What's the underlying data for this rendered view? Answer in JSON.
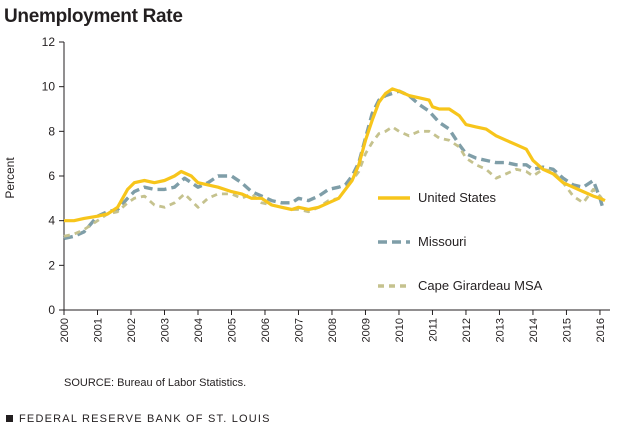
{
  "title": "Unemployment Rate",
  "source": "SOURCE: Bureau of Labor Statistics.",
  "footer": "FEDERAL RESERVE BANK OF ST. LOUIS",
  "chart_data": {
    "type": "line",
    "title": "Unemployment Rate",
    "xlabel": "",
    "ylabel": "Percent",
    "xlim": [
      2000,
      2016.3
    ],
    "ylim": [
      0,
      12
    ],
    "yticks": [
      0,
      2,
      4,
      6,
      8,
      10,
      12
    ],
    "xticks": [
      "2000",
      "2001",
      "2002",
      "2003",
      "2004",
      "2005",
      "2006",
      "2007",
      "2008",
      "2009",
      "2010",
      "2011",
      "2012",
      "2013",
      "2014",
      "2015",
      "2016"
    ],
    "grid": false,
    "legend": "inside-right",
    "series": [
      {
        "name": "United States",
        "color": "#f7c51b",
        "style": "solid",
        "x": [
          2000,
          2000.3,
          2000.6,
          2001.0,
          2001.3,
          2001.6,
          2001.9,
          2002.1,
          2002.4,
          2002.7,
          2003.0,
          2003.3,
          2003.5,
          2003.8,
          2004.0,
          2004.3,
          2004.6,
          2005.0,
          2005.3,
          2005.6,
          2005.9,
          2006.2,
          2006.5,
          2006.8,
          2007.0,
          2007.3,
          2007.6,
          2007.9,
          2008.2,
          2008.4,
          2008.6,
          2008.8,
          2009.0,
          2009.2,
          2009.4,
          2009.6,
          2009.8,
          2010.0,
          2010.3,
          2010.6,
          2010.9,
          2011.0,
          2011.2,
          2011.5,
          2011.8,
          2012.0,
          2012.3,
          2012.6,
          2012.9,
          2013.2,
          2013.5,
          2013.8,
          2014.0,
          2014.3,
          2014.6,
          2014.9,
          2015.2,
          2015.5,
          2015.8,
          2016.0,
          2016.15
        ],
        "values": [
          4.0,
          4.0,
          4.1,
          4.2,
          4.3,
          4.6,
          5.4,
          5.7,
          5.8,
          5.7,
          5.8,
          6.0,
          6.2,
          6.0,
          5.7,
          5.6,
          5.5,
          5.3,
          5.2,
          5.0,
          5.0,
          4.7,
          4.6,
          4.5,
          4.6,
          4.5,
          4.6,
          4.8,
          5.0,
          5.4,
          5.8,
          6.5,
          7.6,
          8.5,
          9.3,
          9.7,
          9.9,
          9.8,
          9.6,
          9.5,
          9.4,
          9.1,
          9.0,
          9.0,
          8.7,
          8.3,
          8.2,
          8.1,
          7.8,
          7.6,
          7.4,
          7.2,
          6.7,
          6.3,
          6.1,
          5.7,
          5.5,
          5.3,
          5.1,
          5.0,
          4.9
        ]
      },
      {
        "name": "Missouri",
        "color": "#7f9ea8",
        "style": "dashed",
        "x": [
          2000,
          2000.3,
          2000.6,
          2001.0,
          2001.3,
          2001.6,
          2001.9,
          2002.1,
          2002.4,
          2002.7,
          2003.0,
          2003.3,
          2003.6,
          2003.8,
          2004.0,
          2004.3,
          2004.6,
          2005.0,
          2005.3,
          2005.6,
          2005.9,
          2006.2,
          2006.5,
          2006.8,
          2007.0,
          2007.3,
          2007.6,
          2007.9,
          2008.2,
          2008.4,
          2008.6,
          2008.8,
          2009.0,
          2009.2,
          2009.4,
          2009.6,
          2009.8,
          2010.0,
          2010.3,
          2010.6,
          2010.9,
          2011.2,
          2011.5,
          2011.8,
          2012.0,
          2012.3,
          2012.6,
          2012.9,
          2013.2,
          2013.5,
          2013.8,
          2014.0,
          2014.3,
          2014.6,
          2014.9,
          2015.2,
          2015.5,
          2015.8,
          2016.0,
          2016.1
        ],
        "values": [
          3.2,
          3.3,
          3.5,
          4.2,
          4.4,
          4.5,
          5.0,
          5.3,
          5.5,
          5.4,
          5.4,
          5.5,
          5.9,
          5.7,
          5.5,
          5.7,
          6.0,
          6.0,
          5.7,
          5.3,
          5.1,
          4.9,
          4.8,
          4.8,
          5.0,
          4.9,
          5.1,
          5.4,
          5.5,
          5.6,
          6.0,
          6.6,
          7.7,
          8.8,
          9.4,
          9.6,
          9.7,
          9.8,
          9.6,
          9.2,
          8.9,
          8.4,
          8.1,
          7.4,
          7.0,
          6.8,
          6.7,
          6.6,
          6.6,
          6.5,
          6.5,
          6.3,
          6.4,
          6.3,
          5.9,
          5.6,
          5.5,
          5.8,
          5.0,
          4.5
        ]
      },
      {
        "name": "Cape Girardeau MSA",
        "color": "#c5c28e",
        "style": "dashed",
        "x": [
          2000,
          2000.3,
          2000.6,
          2001.0,
          2001.3,
          2001.6,
          2001.9,
          2002.1,
          2002.4,
          2002.7,
          2003.0,
          2003.3,
          2003.6,
          2003.8,
          2004.0,
          2004.3,
          2004.6,
          2005.0,
          2005.3,
          2005.6,
          2005.9,
          2006.2,
          2006.5,
          2006.8,
          2007.0,
          2007.3,
          2007.6,
          2007.9,
          2008.2,
          2008.4,
          2008.6,
          2008.8,
          2009.0,
          2009.2,
          2009.4,
          2009.6,
          2009.8,
          2010.0,
          2010.3,
          2010.6,
          2010.9,
          2011.2,
          2011.5,
          2011.8,
          2012.0,
          2012.3,
          2012.6,
          2012.9,
          2013.2,
          2013.5,
          2013.8,
          2014.0,
          2014.3,
          2014.6,
          2014.9,
          2015.2,
          2015.5,
          2015.8,
          2016.0,
          2016.1
        ],
        "values": [
          3.3,
          3.4,
          3.6,
          4.0,
          4.3,
          4.4,
          4.8,
          5.0,
          5.1,
          4.7,
          4.6,
          4.8,
          5.2,
          4.9,
          4.6,
          5.0,
          5.2,
          5.2,
          5.0,
          5.2,
          4.8,
          4.7,
          4.6,
          4.5,
          4.5,
          4.4,
          4.6,
          4.9,
          5.0,
          5.4,
          5.8,
          6.2,
          7.0,
          7.5,
          7.9,
          8.0,
          8.2,
          8.0,
          7.8,
          8.0,
          8.0,
          7.7,
          7.6,
          7.3,
          6.8,
          6.5,
          6.3,
          5.9,
          6.1,
          6.3,
          6.2,
          6.0,
          6.3,
          6.2,
          5.7,
          5.1,
          4.8,
          5.4,
          5.1,
          4.9
        ]
      }
    ]
  }
}
